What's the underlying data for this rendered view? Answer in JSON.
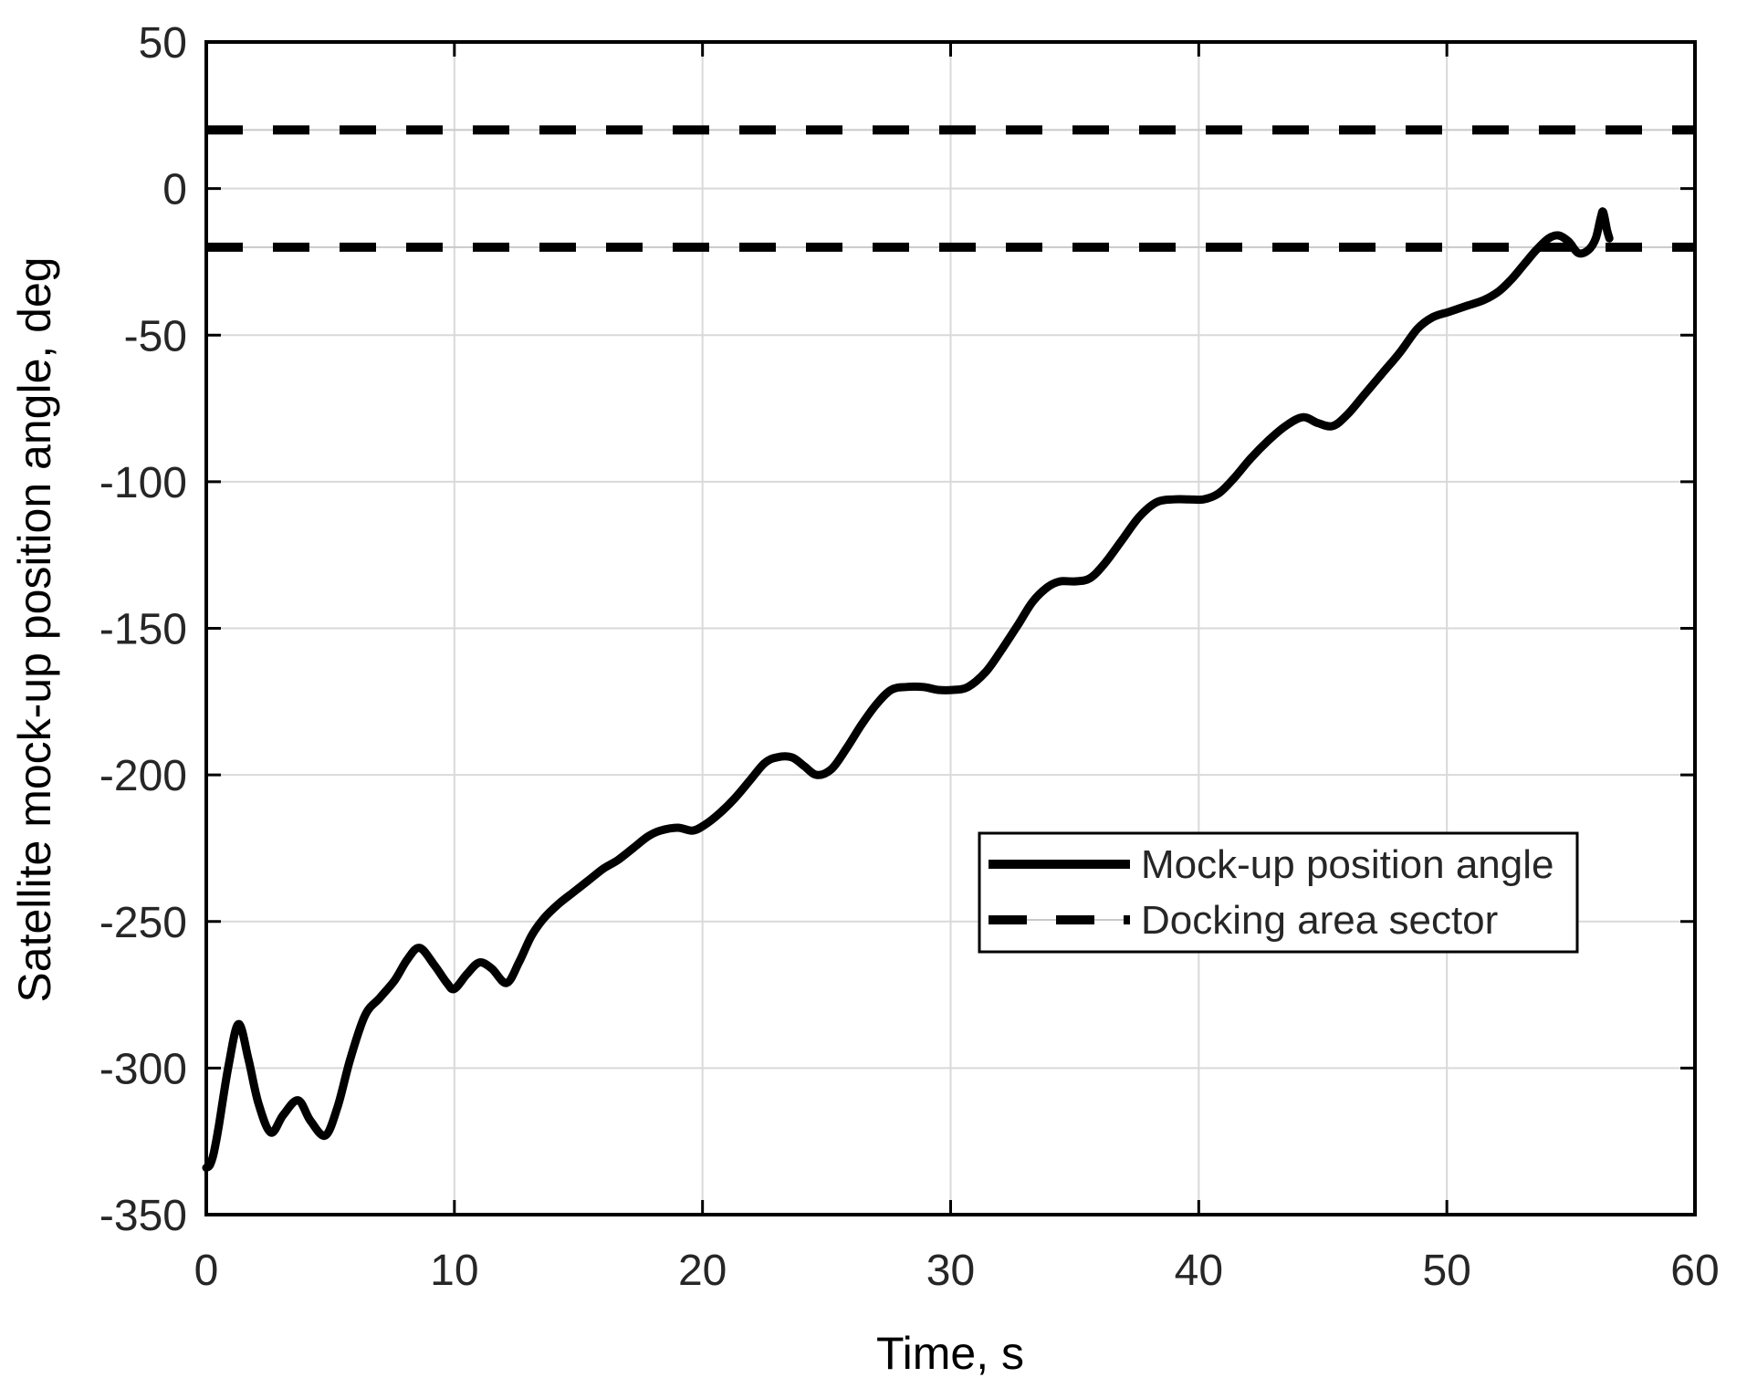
{
  "chart_data": {
    "type": "line",
    "title": "",
    "xlabel": "Time, s",
    "ylabel": "Satellite mock-up position angle, deg",
    "xlim": [
      0,
      60
    ],
    "ylim": [
      -350,
      50
    ],
    "xticks": [
      0,
      10,
      20,
      30,
      40,
      50,
      60
    ],
    "xtick_labels": [
      "0",
      "10",
      "20",
      "30",
      "40",
      "50",
      "60"
    ],
    "yticks": [
      50,
      0,
      -50,
      -100,
      -150,
      -200,
      -250,
      -300,
      -350
    ],
    "ytick_labels": [
      "50",
      "0",
      "-50",
      "-100",
      "-150",
      "-200",
      "-250",
      "-300",
      "-350"
    ],
    "grid": true,
    "legend": {
      "position": "inside-right",
      "items": [
        {
          "label": "Mock-up position angle",
          "style": "solid"
        },
        {
          "label": "Docking area sector",
          "style": "dashed"
        }
      ]
    },
    "thresholds": {
      "name": "Docking area sector",
      "style": "dashed",
      "values": [
        20,
        -20
      ]
    },
    "series": [
      {
        "name": "Mock-up position angle",
        "style": "solid",
        "points": [
          [
            0,
            -334
          ],
          [
            0.15,
            -333
          ],
          [
            0.3,
            -329
          ],
          [
            0.5,
            -320
          ],
          [
            0.9,
            -299
          ],
          [
            1.3,
            -285
          ],
          [
            1.7,
            -297
          ],
          [
            2.1,
            -312
          ],
          [
            2.6,
            -322
          ],
          [
            3.1,
            -316
          ],
          [
            3.7,
            -311
          ],
          [
            4.2,
            -318
          ],
          [
            4.8,
            -323
          ],
          [
            5.3,
            -313
          ],
          [
            5.8,
            -297
          ],
          [
            6.4,
            -282
          ],
          [
            7.0,
            -276
          ],
          [
            7.6,
            -270
          ],
          [
            8.1,
            -263
          ],
          [
            8.6,
            -259
          ],
          [
            9.2,
            -265
          ],
          [
            9.7,
            -271
          ],
          [
            10.0,
            -273
          ],
          [
            10.5,
            -268
          ],
          [
            11.0,
            -264
          ],
          [
            11.5,
            -266
          ],
          [
            12.1,
            -271
          ],
          [
            12.6,
            -264
          ],
          [
            13.1,
            -255
          ],
          [
            13.6,
            -249
          ],
          [
            14.2,
            -244
          ],
          [
            14.8,
            -240
          ],
          [
            15.4,
            -236
          ],
          [
            16.0,
            -232
          ],
          [
            16.6,
            -229
          ],
          [
            17.2,
            -225
          ],
          [
            17.8,
            -221
          ],
          [
            18.3,
            -219
          ],
          [
            19.0,
            -218
          ],
          [
            19.6,
            -219
          ],
          [
            20.1,
            -217
          ],
          [
            20.7,
            -213
          ],
          [
            21.3,
            -208
          ],
          [
            21.9,
            -202
          ],
          [
            22.5,
            -196
          ],
          [
            23.0,
            -194
          ],
          [
            23.6,
            -194
          ],
          [
            24.1,
            -197
          ],
          [
            24.6,
            -200
          ],
          [
            25.2,
            -198
          ],
          [
            25.8,
            -191
          ],
          [
            26.4,
            -183
          ],
          [
            27.0,
            -176
          ],
          [
            27.6,
            -171
          ],
          [
            28.2,
            -170
          ],
          [
            28.9,
            -170
          ],
          [
            29.5,
            -171
          ],
          [
            30.1,
            -171
          ],
          [
            30.7,
            -170
          ],
          [
            31.4,
            -165
          ],
          [
            32.0,
            -158
          ],
          [
            32.7,
            -149
          ],
          [
            33.3,
            -141
          ],
          [
            33.9,
            -136
          ],
          [
            34.4,
            -134
          ],
          [
            35.0,
            -134
          ],
          [
            35.6,
            -133
          ],
          [
            36.2,
            -128
          ],
          [
            36.9,
            -120
          ],
          [
            37.6,
            -112
          ],
          [
            38.3,
            -107
          ],
          [
            39.0,
            -106
          ],
          [
            39.6,
            -106
          ],
          [
            40.2,
            -106
          ],
          [
            40.8,
            -104
          ],
          [
            41.4,
            -99
          ],
          [
            42.1,
            -92
          ],
          [
            42.8,
            -86
          ],
          [
            43.5,
            -81
          ],
          [
            44.2,
            -78
          ],
          [
            44.8,
            -80
          ],
          [
            45.4,
            -81
          ],
          [
            46.0,
            -77
          ],
          [
            46.7,
            -70
          ],
          [
            47.4,
            -63
          ],
          [
            48.1,
            -56
          ],
          [
            48.8,
            -48
          ],
          [
            49.4,
            -44
          ],
          [
            50.1,
            -42
          ],
          [
            50.8,
            -40
          ],
          [
            51.5,
            -38
          ],
          [
            52.1,
            -35
          ],
          [
            52.6,
            -31
          ],
          [
            53.1,
            -26
          ],
          [
            53.6,
            -21
          ],
          [
            54.1,
            -17
          ],
          [
            54.5,
            -16
          ],
          [
            54.9,
            -18
          ],
          [
            55.3,
            -22
          ],
          [
            55.7,
            -21
          ],
          [
            56.0,
            -17
          ],
          [
            56.2,
            -10
          ],
          [
            56.3,
            -8
          ],
          [
            56.45,
            -14
          ],
          [
            56.55,
            -17
          ]
        ]
      }
    ],
    "colors": {
      "curve": "#000000",
      "threshold": "#000000",
      "threshold_underlay": "#c9c9c9",
      "grid": "#d9d9d9",
      "axis": "#000000",
      "tick_label": "#262626",
      "background": "#ffffff"
    }
  },
  "labels": {
    "x": "Time, s",
    "y": "Satellite mock-up position angle, deg"
  },
  "legend": {
    "items": [
      {
        "label": "Mock-up position angle"
      },
      {
        "label": "Docking area sector"
      }
    ]
  }
}
